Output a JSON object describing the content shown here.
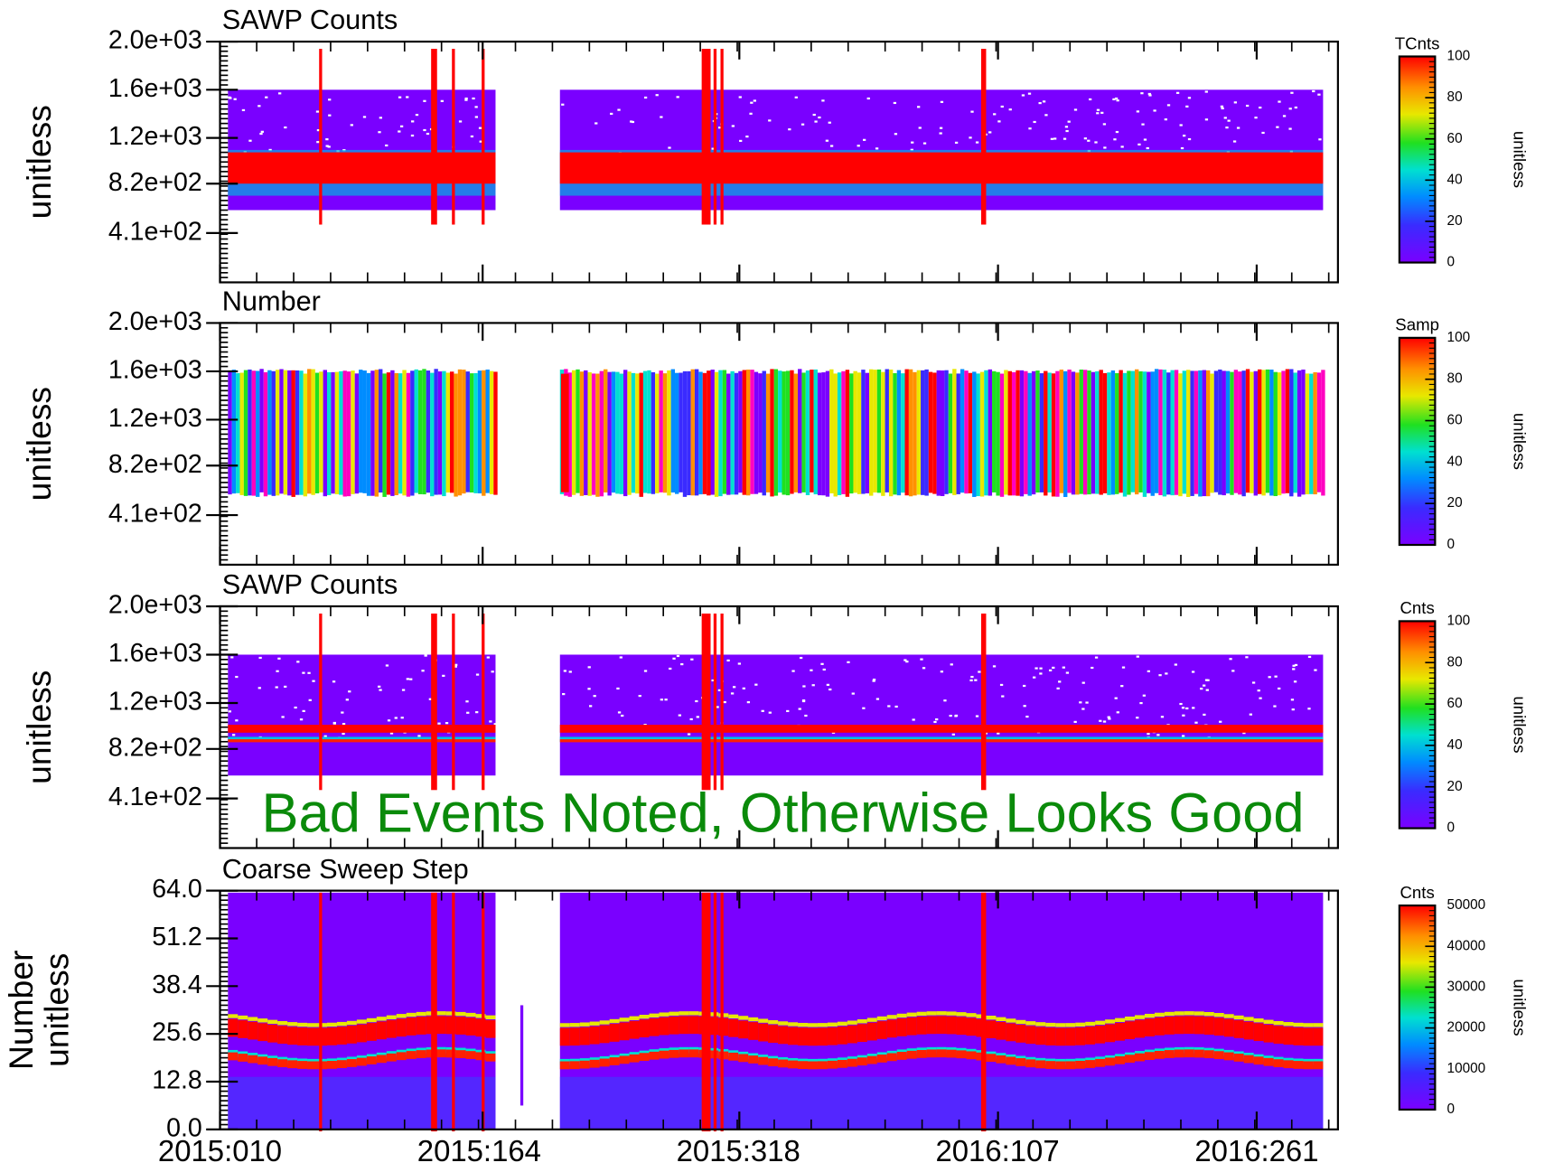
{
  "chart_data": [
    {
      "type": "heatmap",
      "title": "SAWP Counts",
      "ylabel": [
        "unitless"
      ],
      "ylim": [
        0,
        2000
      ],
      "yticks": [
        {
          "value": 410,
          "label": "4.1e+02"
        },
        {
          "value": 820,
          "label": "8.2e+02"
        },
        {
          "value": 1200,
          "label": "1.2e+03"
        },
        {
          "value": 1600,
          "label": "1.6e+03"
        },
        {
          "value": 2000,
          "label": "2.0e+03"
        }
      ],
      "colorbar": {
        "title": "TCnts",
        "label": "unitless",
        "lim": [
          0,
          100
        ],
        "ticks": [
          0,
          20,
          40,
          60,
          80,
          100
        ]
      }
    },
    {
      "type": "heatmap",
      "title": "Number",
      "ylabel": [
        "unitless"
      ],
      "ylim": [
        0,
        2000
      ],
      "yticks": [
        {
          "value": 410,
          "label": "4.1e+02"
        },
        {
          "value": 820,
          "label": "8.2e+02"
        },
        {
          "value": 1200,
          "label": "1.2e+03"
        },
        {
          "value": 1600,
          "label": "1.6e+03"
        },
        {
          "value": 2000,
          "label": "2.0e+03"
        }
      ],
      "colorbar": {
        "title": "Samp",
        "label": "unitless",
        "lim": [
          0,
          100
        ],
        "ticks": [
          0,
          20,
          40,
          60,
          80,
          100
        ]
      }
    },
    {
      "type": "heatmap",
      "title": "SAWP Counts",
      "ylabel": [
        "unitless"
      ],
      "ylim": [
        0,
        2000
      ],
      "yticks": [
        {
          "value": 410,
          "label": "4.1e+02"
        },
        {
          "value": 820,
          "label": "8.2e+02"
        },
        {
          "value": 1200,
          "label": "1.2e+03"
        },
        {
          "value": 1600,
          "label": "1.6e+03"
        },
        {
          "value": 2000,
          "label": "2.0e+03"
        }
      ],
      "colorbar": {
        "title": "Cnts",
        "label": "unitless",
        "lim": [
          0,
          100
        ],
        "ticks": [
          0,
          20,
          40,
          60,
          80,
          100
        ]
      },
      "annotation": "Bad Events Noted, Otherwise Looks Good"
    },
    {
      "type": "heatmap",
      "title": "Coarse Sweep Step",
      "ylabel": [
        "Number",
        "unitless"
      ],
      "ylim": [
        0,
        64
      ],
      "yticks": [
        {
          "value": 0,
          "label": "0.0"
        },
        12.8,
        25.6,
        38.4,
        51.2,
        {
          "value": 64,
          "label": "64.0"
        }
      ],
      "colorbar": {
        "title": "Cnts",
        "label": "unitless",
        "lim": [
          0,
          50000
        ],
        "ticks": [
          0,
          10000,
          20000,
          30000,
          40000,
          50000
        ]
      },
      "xticks": [
        "2015:010",
        "2015:164",
        "2015:318",
        "2016:107",
        "2016:261"
      ]
    }
  ]
}
